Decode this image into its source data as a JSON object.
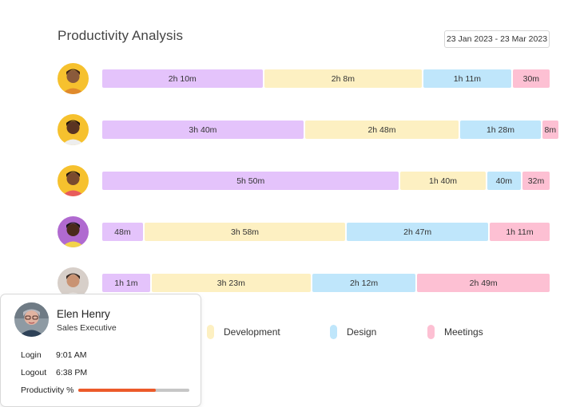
{
  "header": {
    "title": "Productivity Analysis",
    "date_range": "23 Jan 2023 - 23 Mar 2023"
  },
  "colors": {
    "Productive": "#e4c3fb",
    "Development": "#fdf0c2",
    "Design": "#bfe6fb",
    "Meetings": "#fdc0d3"
  },
  "chart_data": {
    "type": "bar",
    "orientation": "horizontal",
    "stacked": true,
    "categories": [
      "",
      "",
      "",
      "",
      ""
    ],
    "series": [
      {
        "color": "#e4c3fb",
        "values": [
          130,
          220,
          350,
          48,
          61
        ],
        "labels": [
          "2h 10m",
          "3h 40m",
          "5h 50m",
          "48m",
          "1h 1m"
        ]
      },
      {
        "name": "Development",
        "color": "#fdf0c2",
        "values": [
          128,
          168,
          100,
          238,
          203
        ],
        "labels": [
          "2h 8m",
          "2h 48m",
          "1h 40m",
          "3h 58m",
          "3h 23m"
        ]
      },
      {
        "name": "Design",
        "color": "#bfe6fb",
        "values": [
          71,
          88,
          40,
          167,
          132
        ],
        "labels": [
          "1h 11m",
          "1h 28m",
          "40m",
          "2h 47m",
          "2h 12m"
        ]
      },
      {
        "name": "Meetings",
        "color": "#fdc0d3",
        "values": [
          30,
          8,
          32,
          71,
          169
        ],
        "labels": [
          "30m",
          "8m",
          "32m",
          "1h 11m",
          "2h 49m"
        ]
      }
    ],
    "legend": [
      "Development",
      "Design",
      "Meetings"
    ],
    "legend_position": "bottom"
  },
  "card": {
    "name": "Elen Henry",
    "role": "Sales Executive",
    "login_label": "Login",
    "login_value": "9:01 AM",
    "logout_label": "Logout",
    "logout_value": "6:38 PM",
    "productivity_label": "Productivity %",
    "productivity_fraction": 0.7,
    "productivity_color": "#ec5a2a"
  }
}
